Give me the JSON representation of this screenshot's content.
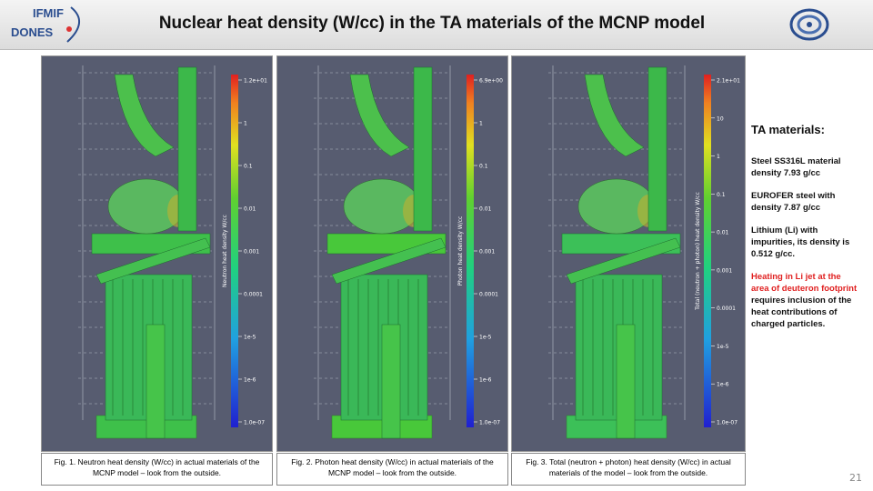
{
  "header": {
    "title": "Nuclear heat density (W/cc) in the TA materials of the MCNP model",
    "logo_top": "IFMIF",
    "logo_bottom": "DONES"
  },
  "figures": [
    {
      "colorbar_title": "Neutron heat density W/cc",
      "colorbar_ticks": [
        "1.2e+01",
        "1",
        "0.1",
        "0.01",
        "0.001",
        "0.0001",
        "1e-5",
        "1e-6",
        "1.0e-07"
      ],
      "caption": "Fig. 1. Neutron heat density (W/cc) in actual materials of the MCNP model – look from the outside."
    },
    {
      "colorbar_title": "Photon heat density W/cc",
      "colorbar_ticks": [
        "6.9e+00",
        "1",
        "0.1",
        "0.01",
        "0.001",
        "0.0001",
        "1e-5",
        "1e-6",
        "1.0e-07"
      ],
      "caption": "Fig. 2. Photon heat density (W/cc) in actual materials of the MCNP model – look from the outside."
    },
    {
      "colorbar_title": "Total (neutron + photon) heat density W/cc",
      "colorbar_ticks": [
        "2.1e+01",
        "10",
        "1",
        "0.1",
        "0.01",
        "0.001",
        "0.0001",
        "1e-5",
        "1e-6",
        "1.0e-07"
      ],
      "caption": "Fig. 3. Total (neutron + photon) heat density (W/cc) in actual materials of the model – look from the outside."
    }
  ],
  "side_panel": {
    "heading": "TA materials:",
    "items": [
      "Steel SS316L material density 7.93 g/cc",
      "EUROFER steel with density 7.87 g/cc",
      "Lithium (Li) with impurities, its density is 0.512 g/cc."
    ],
    "note_highlight": "Heating in Li jet at the area of deuteron footprint",
    "note_rest": " requires inclusion of the heat contributions of charged particles."
  },
  "page_number": "21"
}
